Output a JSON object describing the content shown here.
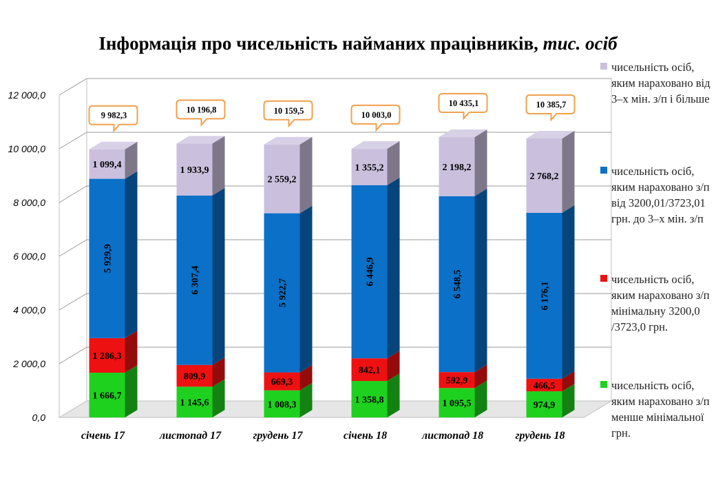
{
  "title": {
    "main": "Інформація про чисельність найманих працівників, ",
    "unit": "тис. осіб"
  },
  "legend": [
    {
      "series": 3,
      "label": "чисельність осіб, яким нараховано від 3–х мін. з/п і більше"
    },
    {
      "series": 2,
      "label": "чисельність осіб, яким нараховано з/п від 3200,01/3723,01 грн. до 3–х мін. з/п"
    },
    {
      "series": 1,
      "label": "чисельність осіб, яким нараховано з/п мінімальну 3200,0 /3723,0 грн."
    },
    {
      "series": 0,
      "label": "чисельність осіб, яким нараховано з/п менше мінімальної грн."
    }
  ],
  "chart_data": {
    "type": "bar",
    "stacked": true,
    "three_d": true,
    "categories": [
      "січень 17",
      "листопад 17",
      "грудень 17",
      "січень 18",
      "листопад 18",
      "грудень 18"
    ],
    "series": [
      {
        "name": "чисельність осіб, яким нараховано з/п менше мінімальної грн.",
        "color": "#1fd11f",
        "values": [
          1666.7,
          1145.6,
          1008.3,
          1358.8,
          1095.5,
          974.9
        ],
        "labels": [
          "1 666,7",
          "1 145,6",
          "1 008,3",
          "1 358,8",
          "1 095,5",
          "974,9"
        ]
      },
      {
        "name": "чисельність осіб, яким нараховано з/п мінімальну 3200,0 /3723,0 грн.",
        "color": "#ee1111",
        "values": [
          1286.3,
          809.9,
          669.3,
          842.1,
          592.9,
          466.5
        ],
        "labels": [
          "1 286,3",
          "809,9",
          "669,3",
          "842,1",
          "592,9",
          "466,5"
        ]
      },
      {
        "name": "чисельність осіб, яким нараховано з/п від 3200,01/3723,01 грн. до 3–х мін. з/п",
        "color": "#0a70c8",
        "values": [
          5929.9,
          6307.4,
          5922.7,
          6446.9,
          6548.5,
          6176.1
        ],
        "labels": [
          "5 929,9",
          "6 307,4",
          "5 922,7",
          "6 446,9",
          "6 548,5",
          "6 176,1"
        ]
      },
      {
        "name": "чисельність осіб, яким нараховано від 3–х мін. з/п і більше",
        "color": "#cac0dd",
        "values": [
          1099.4,
          1933.9,
          2559.2,
          1355.2,
          2198.2,
          2768.2
        ],
        "labels": [
          "1 099,4",
          "1 933,9",
          "2 559,2",
          "1 355,2",
          "2 198,2",
          "2 768,2"
        ]
      }
    ],
    "totals": [
      9982.3,
      10196.8,
      10159.5,
      10003.0,
      10435.1,
      10385.7
    ],
    "total_labels": [
      "9 982,3",
      "10 196,8",
      "10 159,5",
      "10 003,0",
      "10 435,1",
      "10 385,7"
    ],
    "ylim": [
      0,
      12000
    ],
    "yticks": [
      0,
      2000,
      4000,
      6000,
      8000,
      10000,
      12000
    ],
    "ytick_labels": [
      "0,0",
      "2 000,0",
      "4 000,0",
      "6 000,0",
      "8 000,0",
      "10 000,0",
      "12 000,0"
    ],
    "grid": true,
    "legend_position": "right",
    "total_callout_color": "#f0a04b"
  }
}
